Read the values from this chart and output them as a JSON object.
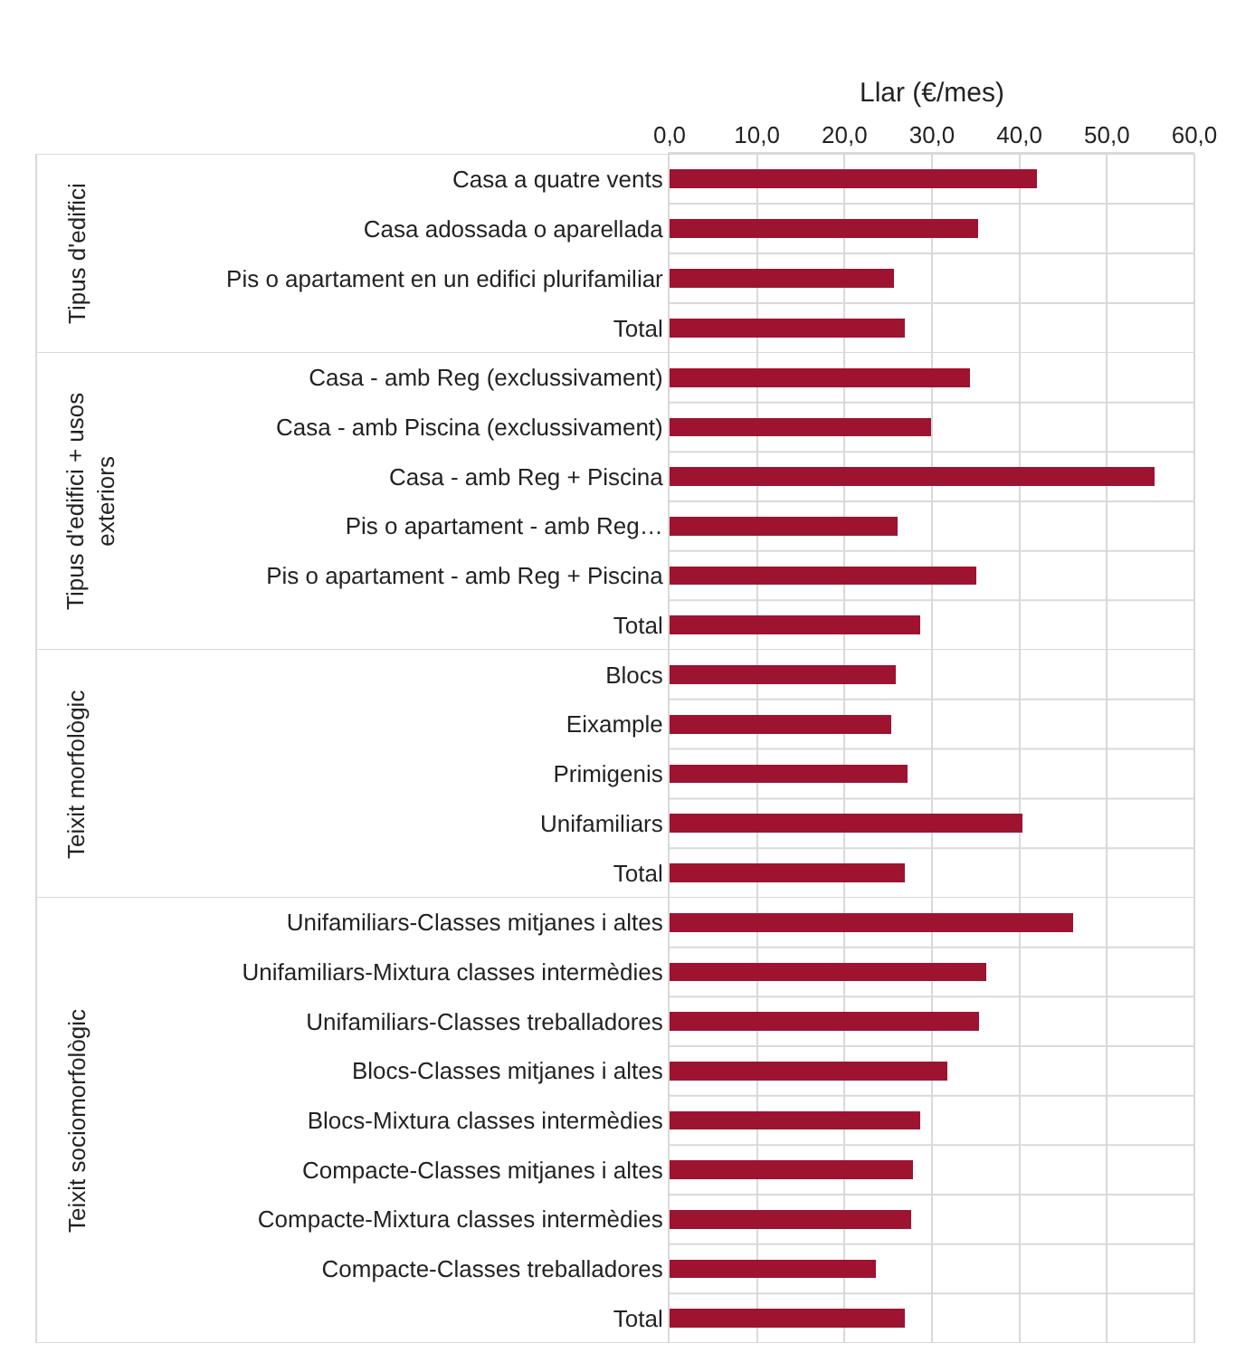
{
  "chart_data": [
    {
      "type": "bar",
      "orientation": "horizontal",
      "xlabel": "Llar (€/mes)",
      "ylabel": "Tipus d'edifici",
      "categories": [
        "Casa a quatre vents",
        "Casa adossada o aparellada",
        "Pis o apartament en un edifici plurifamiliar",
        "Total"
      ],
      "values": [
        42.0,
        35.3,
        25.7,
        26.9
      ],
      "color": "#9e1330",
      "xlim": [
        0,
        60
      ],
      "xticks": [
        {
          "value": 0,
          "label": "0,0"
        },
        {
          "value": 10,
          "label": "10,0"
        },
        {
          "value": 20,
          "label": "20,0"
        },
        {
          "value": 30,
          "label": "30,0"
        },
        {
          "value": 40,
          "label": "40,0"
        },
        {
          "value": 50,
          "label": "50,0"
        },
        {
          "value": 60,
          "label": "60,0"
        }
      ],
      "grid": true
    },
    {
      "type": "bar",
      "orientation": "horizontal",
      "ylabel": "Tipus d'edifici + usos exteriors",
      "categories": [
        "Casa - amb Reg (exclussivament)",
        "Casa - amb Piscina (exclussivament)",
        "Casa - amb Reg + Piscina",
        "Pis o apartament - amb Reg…",
        "Pis o apartament - amb Reg + Piscina",
        "Total"
      ],
      "values": [
        34.3,
        29.9,
        55.4,
        26.1,
        35.1,
        28.7
      ],
      "color": "#9e1330",
      "xlim": [
        0,
        60
      ],
      "xticks": [
        0,
        10,
        20,
        30,
        40,
        50,
        60
      ],
      "grid": true,
      "tick_labels": "y"
    },
    {
      "type": "bar",
      "orientation": "horizontal",
      "ylabel": "Teixit morfològic",
      "categories": [
        "Blocs",
        "Eixample",
        "Primigenis",
        "Unifamiliars",
        "Total"
      ],
      "values": [
        25.9,
        25.3,
        27.2,
        40.3,
        26.9
      ],
      "color": "#9e1330",
      "xlim": [
        0,
        60
      ],
      "xticks": [
        0,
        10,
        20,
        30,
        40,
        50,
        60
      ],
      "grid": true,
      "tick_labels": "y"
    },
    {
      "type": "bar",
      "orientation": "horizontal",
      "ylabel": "Teixit sociomorfològic",
      "categories": [
        "Unifamiliars-Classes mitjanes i altes",
        "Unifamiliars-Mixtura classes intermèdies",
        "Unifamiliars-Classes treballadores",
        "Blocs-Classes mitjanes i altes",
        "Blocs-Mixtura classes intermèdies",
        "Compacte-Classes mitjanes i altes",
        "Compacte-Mixtura classes intermèdies",
        "Compacte-Classes treballadores",
        "Total"
      ],
      "values": [
        46.1,
        36.2,
        35.4,
        31.8,
        28.7,
        27.8,
        27.6,
        23.6,
        26.9
      ],
      "color": "#9e1330",
      "xlim": [
        0,
        60
      ],
      "xticks": [
        0,
        10,
        20,
        30,
        40,
        50,
        60
      ],
      "grid": true,
      "tick_labels": "y"
    }
  ]
}
